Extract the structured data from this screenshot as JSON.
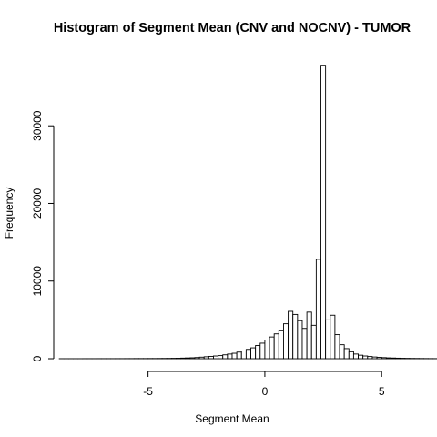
{
  "chart_data": {
    "type": "bar",
    "title": "Histogram of Segment Mean (CNV and NOCNV) - TUMOR",
    "xlabel": "Segment Mean",
    "ylabel": "Frequency",
    "bin_width": 0.2,
    "bin_start": -8.8,
    "xlim": [
      -9,
      6.2
    ],
    "ylim": [
      0,
      38000
    ],
    "x_ticks": [
      -5,
      0,
      5
    ],
    "x_tick_labels": [
      "-5",
      "0",
      "5"
    ],
    "y_ticks": [
      0,
      10000,
      20000,
      30000
    ],
    "y_tick_labels": [
      "0",
      "10000",
      "20000",
      "30000"
    ],
    "values": [
      5,
      5,
      5,
      5,
      5,
      8,
      8,
      8,
      10,
      10,
      10,
      10,
      12,
      12,
      15,
      15,
      20,
      20,
      20,
      25,
      25,
      30,
      35,
      40,
      50,
      60,
      80,
      100,
      120,
      150,
      200,
      250,
      300,
      350,
      400,
      500,
      600,
      700,
      850,
      1000,
      1200,
      1400,
      1700,
      2000,
      2400,
      2800,
      3200,
      3600,
      4500,
      6100,
      5700,
      4900,
      3900,
      6000,
      4300,
      12800,
      37800,
      5000,
      5600,
      3100,
      1800,
      1300,
      900,
      600,
      450,
      350,
      280,
      220,
      180,
      140,
      110,
      90,
      70,
      55,
      45,
      35,
      30,
      25,
      20,
      15,
      12,
      10,
      8,
      6,
      5,
      5,
      5,
      4,
      3,
      3,
      2,
      2,
      2,
      2,
      2,
      2,
      2,
      2,
      2,
      2,
      2,
      2,
      2,
      2,
      2,
      2,
      2
    ]
  }
}
